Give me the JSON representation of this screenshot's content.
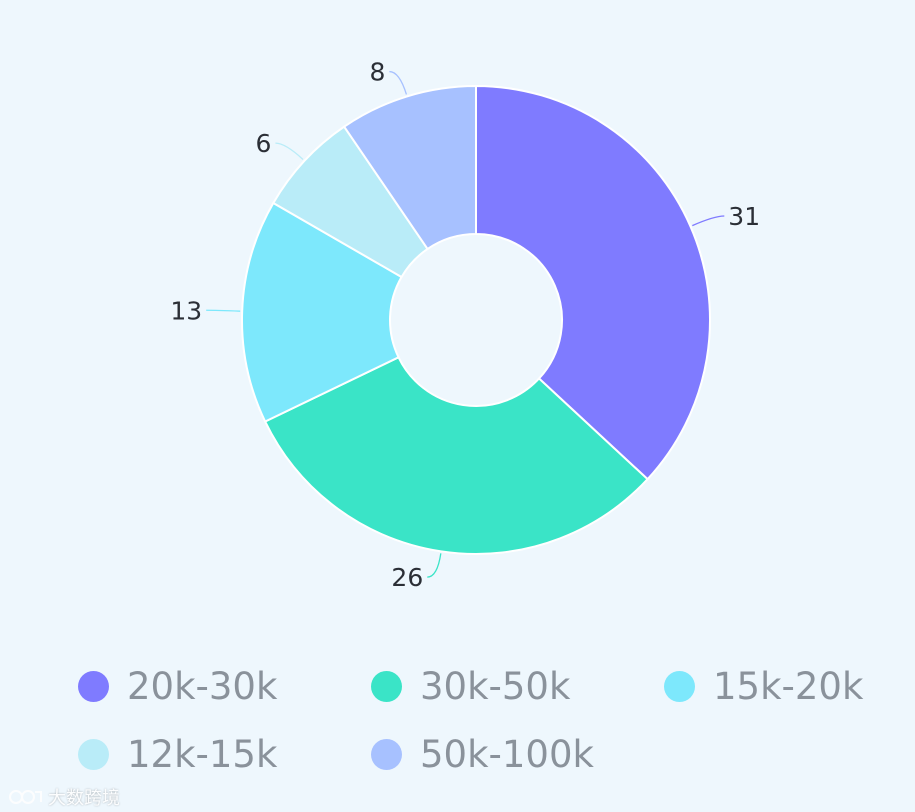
{
  "chart_data": {
    "type": "pie",
    "variant": "donut",
    "categories": [
      "20k-30k",
      "30k-50k",
      "15k-20k",
      "12k-15k",
      "50k-100k"
    ],
    "values": [
      31,
      26,
      13,
      6,
      8
    ],
    "colors": [
      "#7f7bff",
      "#3ae4c7",
      "#7de8fc",
      "#b9ecf8",
      "#a7c1ff"
    ],
    "data_labels": [
      "31",
      "26",
      "13",
      "6",
      "8"
    ],
    "legend_position": "bottom",
    "start_angle_deg": 0,
    "direction": "clockwise"
  },
  "watermark": {
    "text": "大数跨境",
    "icon": "watermark-logo-icon"
  }
}
